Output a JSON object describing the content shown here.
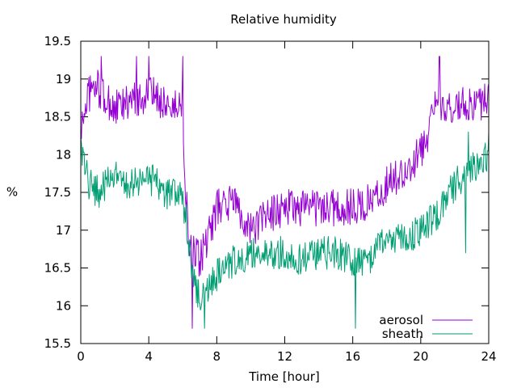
{
  "chart_data": {
    "type": "line",
    "title": "Relative humidity",
    "xlabel": "Time [hour]",
    "ylabel": "%",
    "xlim": [
      0,
      24
    ],
    "ylim": [
      15.5,
      19.5
    ],
    "xticks": [
      0,
      4,
      8,
      12,
      16,
      20,
      24
    ],
    "yticks": [
      15.5,
      16,
      16.5,
      17,
      17.5,
      18,
      18.5,
      19,
      19.5
    ],
    "grid": false,
    "legend": "bottom-right",
    "sample_step_hours": 0.04,
    "series": [
      {
        "name": "aerosol",
        "color": "#9400d3",
        "anchors": [
          [
            0.0,
            18.3
          ],
          [
            0.4,
            18.8
          ],
          [
            1.0,
            18.9
          ],
          [
            1.5,
            18.7
          ],
          [
            2.0,
            18.6
          ],
          [
            3.0,
            18.7
          ],
          [
            4.0,
            18.8
          ],
          [
            5.0,
            18.7
          ],
          [
            5.5,
            18.6
          ],
          [
            5.95,
            18.7
          ],
          [
            6.1,
            17.9
          ],
          [
            6.3,
            17.0
          ],
          [
            6.5,
            16.7
          ],
          [
            7.0,
            16.6
          ],
          [
            7.5,
            16.9
          ],
          [
            8.0,
            17.3
          ],
          [
            9.0,
            17.4
          ],
          [
            10.0,
            17.0
          ],
          [
            11.0,
            17.2
          ],
          [
            12.0,
            17.3
          ],
          [
            13.0,
            17.3
          ],
          [
            14.0,
            17.3
          ],
          [
            15.0,
            17.3
          ],
          [
            16.0,
            17.3
          ],
          [
            17.0,
            17.4
          ],
          [
            18.0,
            17.6
          ],
          [
            19.0,
            17.8
          ],
          [
            20.0,
            18.0
          ],
          [
            21.0,
            18.7
          ],
          [
            22.0,
            18.6
          ],
          [
            23.0,
            18.7
          ],
          [
            24.0,
            18.7
          ]
        ],
        "noise": 0.25,
        "extremes": [
          [
            1.2,
            19.3
          ],
          [
            3.3,
            19.3
          ],
          [
            4.0,
            19.3
          ],
          [
            6.0,
            19.3
          ],
          [
            6.55,
            15.7
          ],
          [
            21.1,
            19.3
          ]
        ]
      },
      {
        "name": "sheath",
        "color": "#009e73",
        "anchors": [
          [
            0.0,
            18.0
          ],
          [
            0.5,
            17.6
          ],
          [
            1.0,
            17.5
          ],
          [
            2.0,
            17.7
          ],
          [
            3.0,
            17.6
          ],
          [
            4.0,
            17.7
          ],
          [
            5.0,
            17.5
          ],
          [
            6.0,
            17.4
          ],
          [
            6.3,
            17.0
          ],
          [
            6.6,
            16.4
          ],
          [
            7.0,
            16.1
          ],
          [
            7.5,
            16.2
          ],
          [
            8.0,
            16.4
          ],
          [
            9.0,
            16.6
          ],
          [
            10.0,
            16.7
          ],
          [
            11.0,
            16.7
          ],
          [
            12.0,
            16.7
          ],
          [
            13.0,
            16.6
          ],
          [
            14.0,
            16.7
          ],
          [
            15.0,
            16.7
          ],
          [
            16.0,
            16.6
          ],
          [
            17.0,
            16.6
          ],
          [
            18.0,
            16.9
          ],
          [
            19.0,
            16.9
          ],
          [
            20.0,
            17.0
          ],
          [
            21.0,
            17.2
          ],
          [
            22.0,
            17.6
          ],
          [
            23.0,
            17.8
          ],
          [
            24.0,
            18.0
          ]
        ],
        "noise": 0.22,
        "extremes": [
          [
            1.3,
            17.3
          ],
          [
            7.3,
            15.7
          ],
          [
            16.15,
            15.7
          ],
          [
            22.8,
            18.3
          ],
          [
            22.65,
            16.7
          ],
          [
            24.0,
            18.3
          ]
        ]
      }
    ]
  }
}
